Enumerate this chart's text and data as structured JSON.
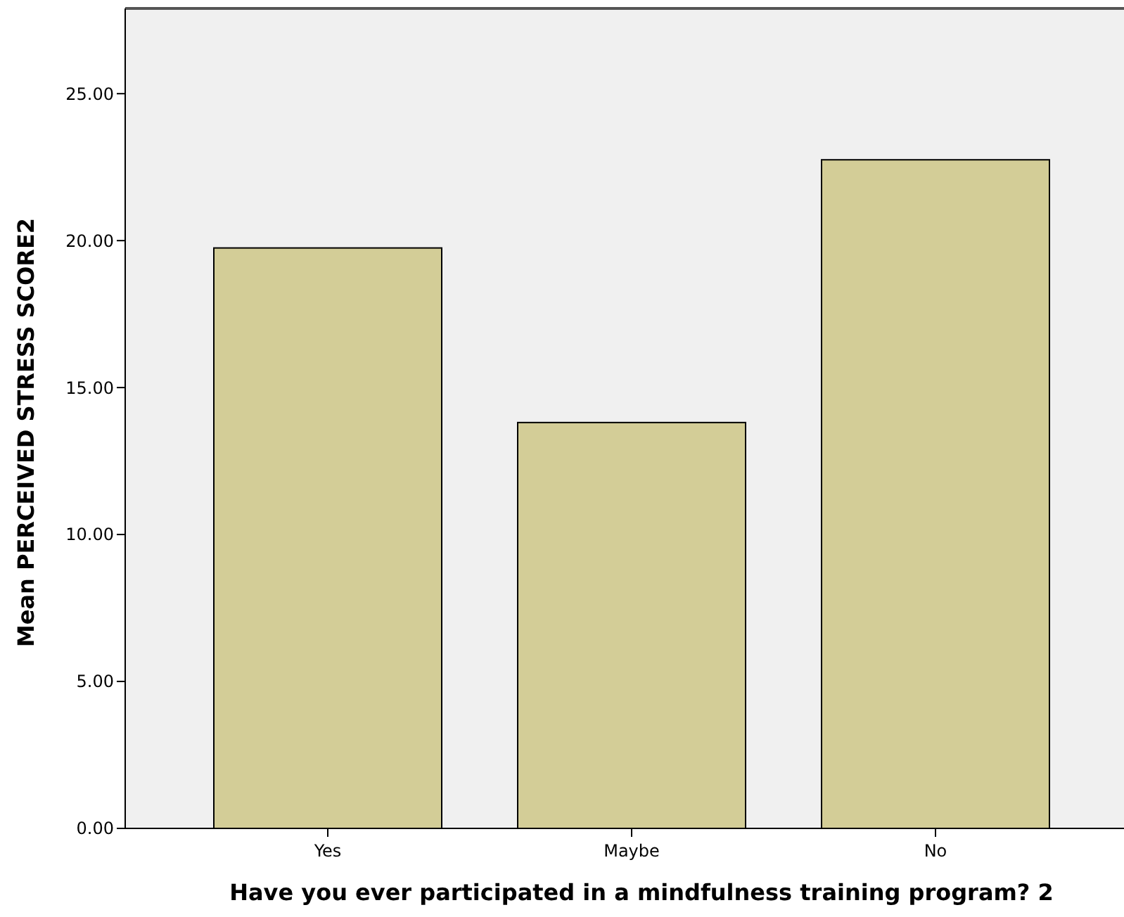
{
  "chart_data": {
    "type": "bar",
    "xlabel": "Have you ever participated in a mindfulness training program? 2",
    "ylabel": "Mean PERCEIVED STRESS SCORE2",
    "categories": [
      "Yes",
      "Maybe",
      "No"
    ],
    "values": [
      19.75,
      13.81,
      22.75
    ],
    "color": "#d3cd97",
    "ylim": [
      0,
      27.9
    ],
    "yticks": [
      {
        "value": 0,
        "label": "0.00"
      },
      {
        "value": 5,
        "label": "5.00"
      },
      {
        "value": 10,
        "label": "10.00"
      },
      {
        "value": 15,
        "label": "15.00"
      },
      {
        "value": 20,
        "label": "20.00"
      },
      {
        "value": 25,
        "label": "25.00"
      }
    ],
    "grid": false
  }
}
